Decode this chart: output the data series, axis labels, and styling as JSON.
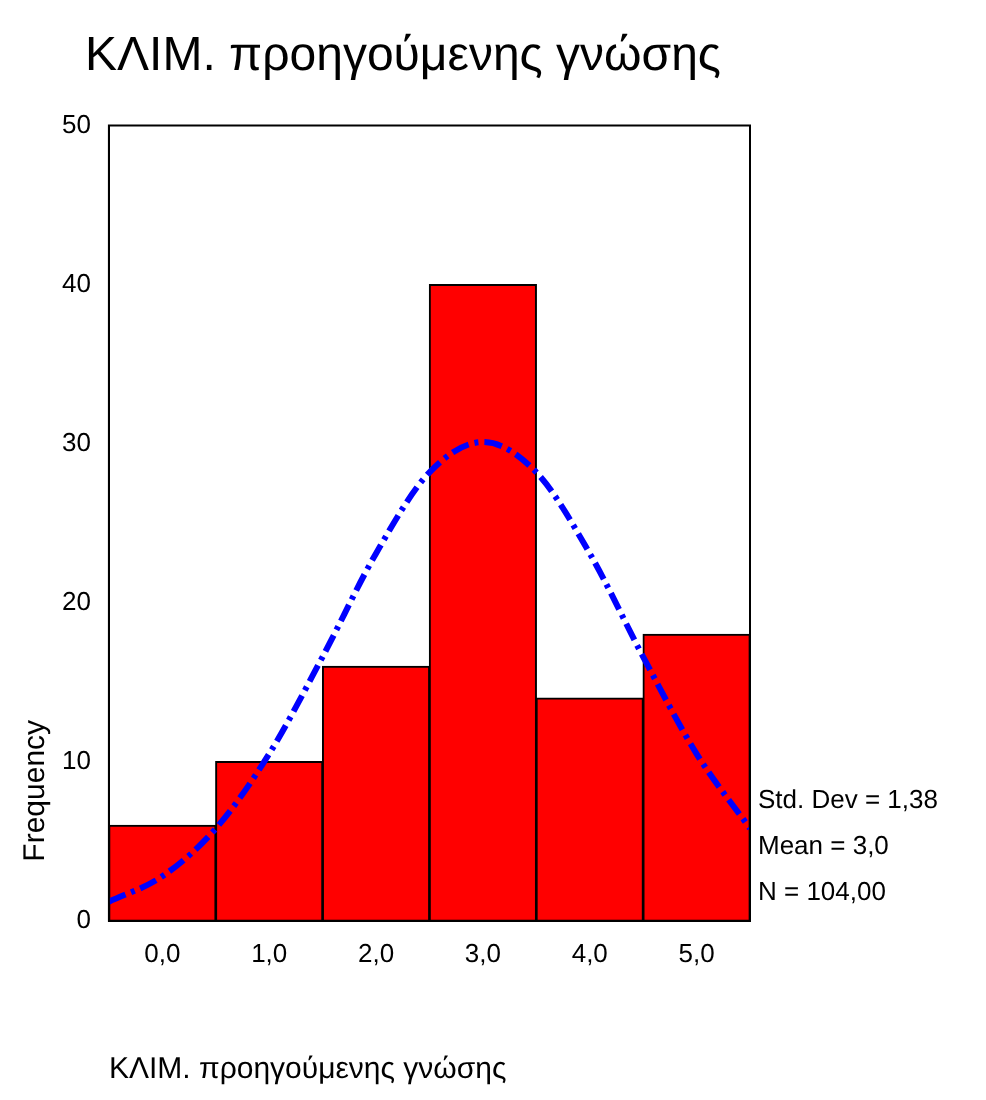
{
  "chart_data": {
    "type": "histogram",
    "title": "ΚΛΙΜ. προηγούμενης γνώσης",
    "xlabel": "ΚΛΙΜ. προηγούμενης γνώσης",
    "ylabel": "Frequency",
    "bins": [
      -0.5,
      0.5,
      1.5,
      2.5,
      3.5,
      4.5,
      5.5
    ],
    "values": [
      6,
      10,
      16,
      40,
      14,
      18
    ],
    "color": "#ff0000",
    "series": [
      {
        "type": "line",
        "color": "#0000ff",
        "line_style": "dashed",
        "marker": "none",
        "x": [
          -0.5,
          0,
          0.5,
          1,
          1.5,
          2,
          2.5,
          3,
          3.5,
          4,
          4.5,
          5,
          5.5
        ],
        "values": [
          1.2,
          2.8,
          5.8,
          10.5,
          16.6,
          23.1,
          28.2,
          30.1,
          28.2,
          23.1,
          16.6,
          10.5,
          5.8
        ]
      }
    ],
    "xlim": [
      -0.5,
      5.5
    ],
    "xticks": [
      {
        "value": 0,
        "label": "0,0"
      },
      {
        "value": 1,
        "label": "1,0"
      },
      {
        "value": 2,
        "label": "2,0"
      },
      {
        "value": 3,
        "label": "3,0"
      },
      {
        "value": 4,
        "label": "4,0"
      },
      {
        "value": 5,
        "label": "5,0"
      }
    ],
    "ylim": [
      0,
      50
    ],
    "yticks": [
      0,
      10,
      20,
      30,
      40,
      50
    ],
    "grid": false,
    "legend": false,
    "annotations": [
      "Std. Dev = 1,38",
      "Mean = 3,0",
      "N = 104,00"
    ]
  }
}
